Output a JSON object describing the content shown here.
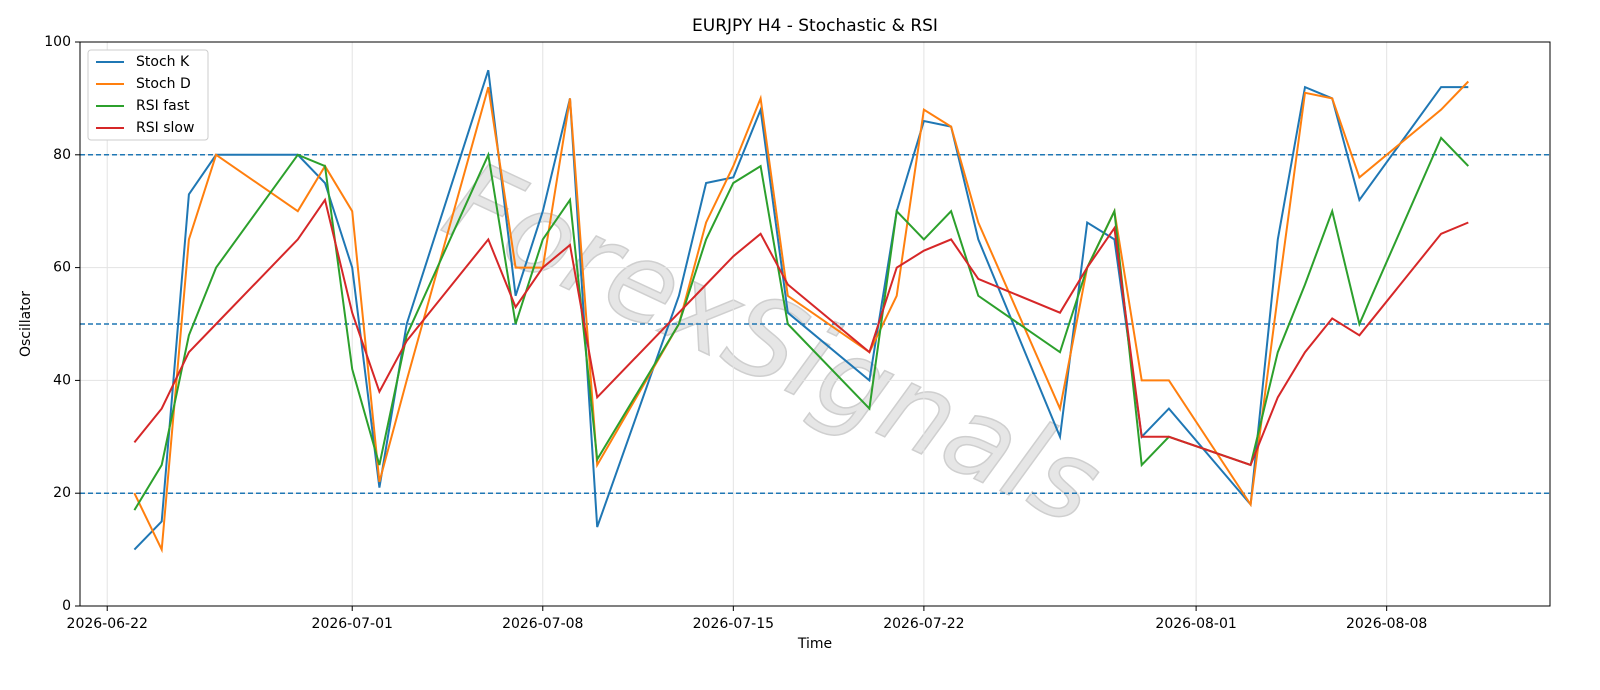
{
  "chart_data": {
    "type": "line",
    "title": "EURJPY H4 - Stochastic & RSI",
    "x_label": "Time",
    "y_label": "Oscillator",
    "watermark": "ForexSignals",
    "x": [
      "2026-06-23",
      "2026-06-24",
      "2026-06-25",
      "2026-06-26",
      "2026-06-29",
      "2026-06-30",
      "2026-07-01",
      "2026-07-02",
      "2026-07-03",
      "2026-07-06",
      "2026-07-07",
      "2026-07-08",
      "2026-07-09",
      "2026-07-10",
      "2026-07-13",
      "2026-07-14",
      "2026-07-15",
      "2026-07-16",
      "2026-07-17",
      "2026-07-20",
      "2026-07-21",
      "2026-07-22",
      "2026-07-23",
      "2026-07-24",
      "2026-07-27",
      "2026-07-28",
      "2026-07-29",
      "2026-07-30",
      "2026-07-31",
      "2026-08-03",
      "2026-08-04",
      "2026-08-05",
      "2026-08-06",
      "2026-08-07",
      "2026-08-10",
      "2026-08-11"
    ],
    "series": [
      {
        "name": "Stoch K",
        "color": "#1f77b4",
        "values": [
          10,
          15,
          73,
          80,
          80,
          75,
          60,
          21,
          50,
          95,
          55,
          70,
          90,
          14,
          55,
          75,
          76,
          88,
          52,
          40,
          70,
          86,
          85,
          65,
          30,
          68,
          65,
          30,
          35,
          18,
          65,
          92,
          90,
          72,
          92,
          92
        ]
      },
      {
        "name": "Stoch D",
        "color": "#ff7f0e",
        "values": [
          20,
          10,
          65,
          80,
          70,
          78,
          70,
          22,
          40,
          92,
          60,
          60,
          90,
          25,
          50,
          68,
          78,
          90,
          55,
          45,
          55,
          88,
          85,
          68,
          35,
          60,
          70,
          40,
          40,
          18,
          55,
          91,
          90,
          76,
          88,
          93
        ]
      },
      {
        "name": "RSI fast",
        "color": "#2ca02c",
        "values": [
          17,
          25,
          48,
          60,
          80,
          78,
          42,
          25,
          48,
          80,
          50,
          65,
          72,
          26,
          50,
          65,
          75,
          78,
          50,
          35,
          70,
          65,
          70,
          55,
          45,
          60,
          70,
          25,
          30,
          25,
          45,
          57,
          70,
          50,
          83,
          78
        ]
      },
      {
        "name": "RSI slow",
        "color": "#d62728",
        "values": [
          29,
          35,
          45,
          50,
          65,
          72,
          52,
          38,
          47,
          65,
          53,
          60,
          64,
          37,
          52,
          57,
          62,
          66,
          57,
          45,
          60,
          63,
          65,
          58,
          52,
          60,
          67,
          30,
          30,
          25,
          37,
          45,
          51,
          48,
          66,
          68
        ]
      }
    ],
    "xlim": [
      "2026-06-21",
      "2026-08-14"
    ],
    "xticks": [
      "2026-06-22",
      "2026-07-01",
      "2026-07-08",
      "2026-07-15",
      "2026-07-22",
      "2026-08-01",
      "2026-08-08"
    ],
    "ylim": [
      0,
      100
    ],
    "yticks": [
      0,
      20,
      40,
      60,
      80,
      100
    ],
    "hlines": [
      20,
      50,
      80
    ],
    "hline_color": "#1f77b4",
    "grid": true,
    "legend": "upper-left"
  }
}
